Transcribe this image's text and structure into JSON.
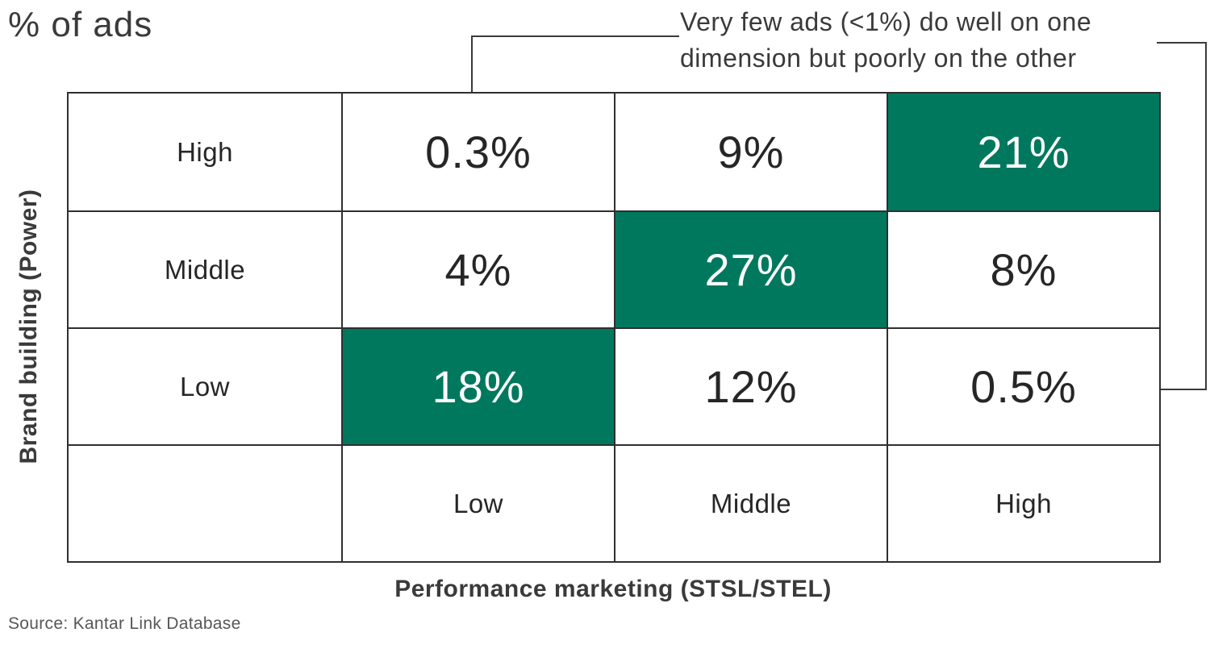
{
  "title": "% of ads",
  "annotation": {
    "text": "Very few ads (<1%) do well on one dimension but poorly on the other"
  },
  "y_axis_label": "Brand building (Power)",
  "x_axis_label": "Performance marketing (STSL/STEL)",
  "source": "Source: Kantar Link Database",
  "colors": {
    "highlight_green": "#00785E",
    "text_dark": "#3A3A3A",
    "text_black": "#262626",
    "border_dark": "#2F2F2F",
    "source_gray": "#575757",
    "cell_text_on_green": "#FFFFFF"
  },
  "grid": {
    "rows": [
      {
        "cells": [
          {
            "text": "High",
            "hl": "false"
          },
          {
            "text": "0.3%",
            "hl": "false"
          },
          {
            "text": "9%",
            "hl": "false"
          },
          {
            "text": "21%",
            "hl": "true"
          }
        ]
      },
      {
        "cells": [
          {
            "text": "Middle",
            "hl": "false"
          },
          {
            "text": "4%",
            "hl": "false"
          },
          {
            "text": "27%",
            "hl": "true"
          },
          {
            "text": "8%",
            "hl": "false"
          }
        ]
      },
      {
        "cells": [
          {
            "text": "Low",
            "hl": "false"
          },
          {
            "text": "18%",
            "hl": "true"
          },
          {
            "text": "12%",
            "hl": "false"
          },
          {
            "text": "0.5%",
            "hl": "false"
          }
        ]
      },
      {
        "cells": [
          {
            "text": "",
            "hl": "false"
          },
          {
            "text": "Low",
            "hl": "false"
          },
          {
            "text": "Middle",
            "hl": "false"
          },
          {
            "text": "High",
            "hl": "false"
          }
        ]
      }
    ]
  },
  "chart_data": {
    "type": "heatmap",
    "title": "% of ads",
    "xlabel": "Performance marketing (STSL/STEL)",
    "ylabel": "Brand building (Power)",
    "x_categories": [
      "Low",
      "Middle",
      "High"
    ],
    "y_categories": [
      "High",
      "Middle",
      "Low"
    ],
    "values_percent": [
      [
        0.3,
        9,
        21
      ],
      [
        4,
        27,
        8
      ],
      [
        18,
        12,
        0.5
      ]
    ],
    "value_labels": [
      [
        "0.3%",
        "9%",
        "21%"
      ],
      [
        "4%",
        "27%",
        "8%"
      ],
      [
        "18%",
        "12%",
        "0.5%"
      ]
    ],
    "highlighted_cells_row_col": [
      [
        0,
        2
      ],
      [
        1,
        1
      ],
      [
        2,
        0
      ]
    ],
    "highlight_color": "#00785E",
    "annotation": "Very few ads (<1%) do well on one dimension but poorly on the other",
    "annotation_points_to": [
      "0.3%",
      "0.5%"
    ],
    "legend": "none",
    "grid_lines": "on",
    "source": "Source: Kantar Link Database"
  }
}
